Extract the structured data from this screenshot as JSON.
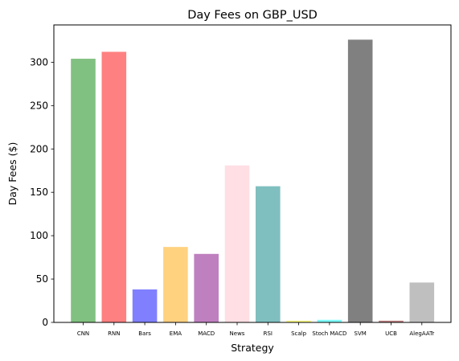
{
  "chart_data": {
    "type": "bar",
    "title": "Day Fees on GBP_USD",
    "xlabel": "Strategy",
    "ylabel": "Day Fees ($)",
    "ylim": [
      0,
      343
    ],
    "yticks": [
      0,
      50,
      100,
      150,
      200,
      250,
      300
    ],
    "grid": false,
    "categories": [
      "CNN",
      "RNN",
      "Bars",
      "EMA",
      "MACD",
      "News",
      "RSI",
      "Scalp",
      "Stoch MACD",
      "SVM",
      "UCB",
      "AlegAATr"
    ],
    "values": [
      304,
      312,
      38,
      87,
      79,
      181,
      157,
      2,
      3,
      326,
      2,
      46
    ],
    "colors": [
      "#80c080",
      "#ff8080",
      "#8080ff",
      "#ffd280",
      "#bf80bf",
      "#ffdfe4",
      "#80bfbf",
      "#ffff80",
      "#80ffff",
      "#808080",
      "#c08080",
      "#bfbfbf"
    ]
  }
}
